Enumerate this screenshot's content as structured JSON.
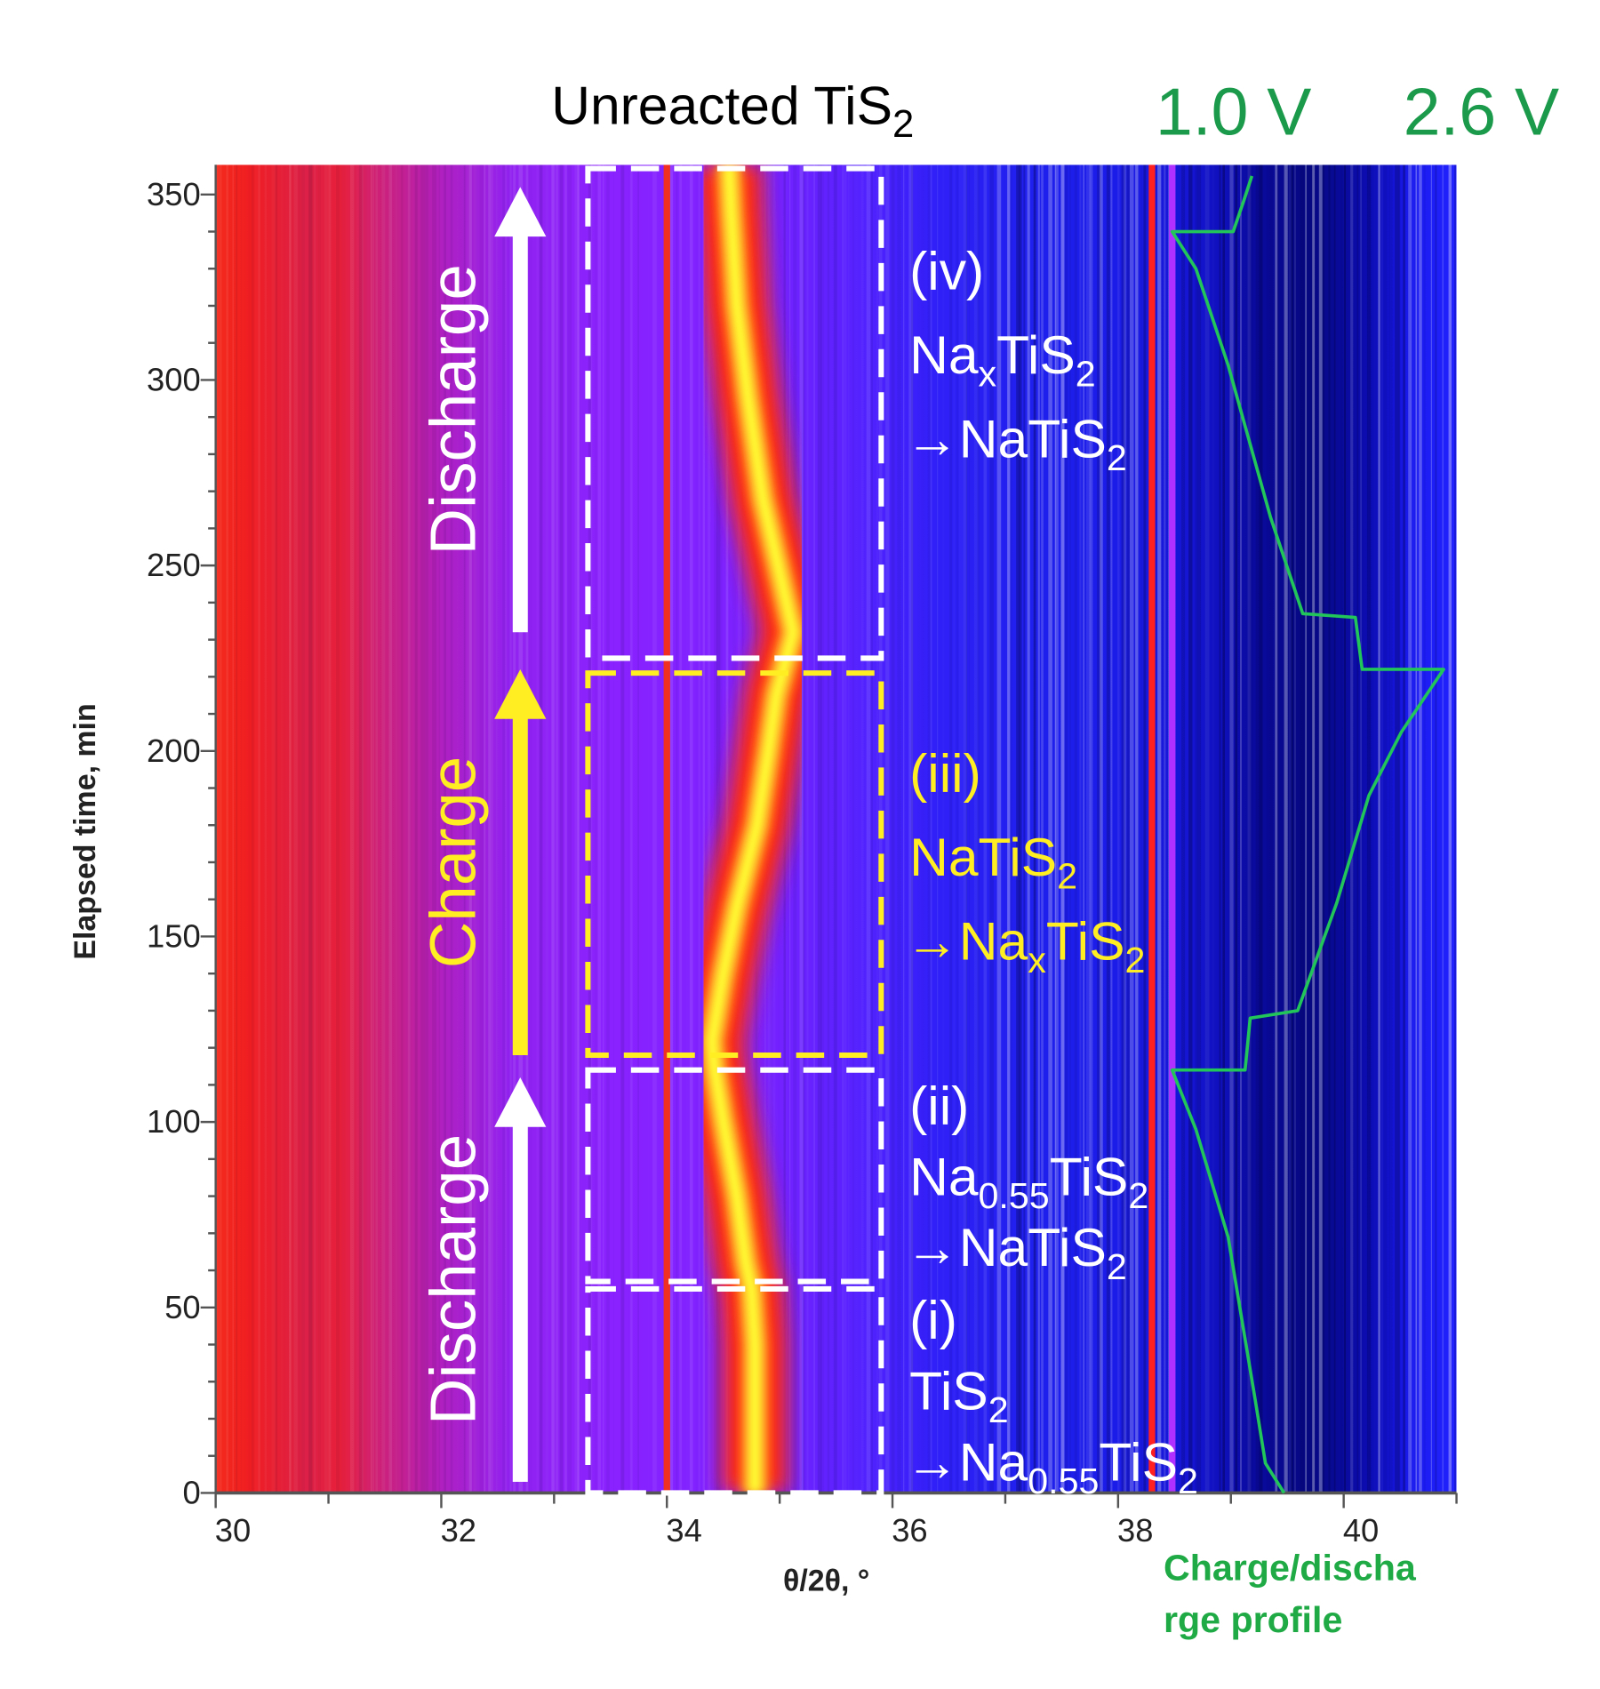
{
  "chart_data": {
    "type": "heatmap",
    "title": [
      "Unreacted TiS",
      {
        "sub": "2"
      }
    ],
    "xlabel": "θ/2θ, °",
    "ylabel": "Elapsed time, min",
    "xlim": [
      30,
      41
    ],
    "ylim": [
      0,
      358
    ],
    "xticks": [
      30,
      32,
      34,
      36,
      38,
      40
    ],
    "yticks": [
      0,
      50,
      100,
      150,
      200,
      250,
      300,
      350
    ],
    "colormap": {
      "low": "#1010e0",
      "mid": "#8a20ff",
      "high_red": "#f02020",
      "peak": "#ffff40"
    },
    "peak_traces": [
      {
        "description_label": "",
        "color": "#ffff30",
        "points": [
          [
            34.0,
            0
          ],
          [
            34.0,
            55
          ]
        ]
      },
      {
        "color": "#ffff30",
        "points": [
          [
            34.78,
            0
          ],
          [
            34.78,
            40
          ],
          [
            34.75,
            55
          ],
          [
            34.7,
            62
          ],
          [
            34.62,
            80
          ],
          [
            34.5,
            100
          ],
          [
            34.42,
            115
          ],
          [
            34.4,
            122
          ],
          [
            34.5,
            140
          ],
          [
            34.62,
            158
          ],
          [
            34.8,
            180
          ],
          [
            34.9,
            200
          ],
          [
            34.97,
            215
          ],
          [
            35.12,
            232
          ],
          [
            35.0,
            248
          ],
          [
            34.85,
            268
          ],
          [
            34.72,
            295
          ],
          [
            34.62,
            320
          ],
          [
            34.57,
            345
          ],
          [
            34.55,
            358
          ]
        ]
      }
    ],
    "constant_lines": [
      {
        "x": 34.0,
        "color": "#f03020"
      },
      {
        "x": 38.3,
        "color": "#ff2020"
      },
      {
        "x": 38.48,
        "color": "#b030ff"
      }
    ],
    "voltage_profile": {
      "name": "Charge/discharge profile",
      "color": "#22c55a",
      "vlim": [
        1.0,
        2.6
      ],
      "vlim_labels": [
        "1.0 V",
        "2.6 V"
      ],
      "points": [
        [
          1.66,
          0
        ],
        [
          1.55,
          8
        ],
        [
          1.49,
          25
        ],
        [
          1.33,
          69
        ],
        [
          1.14,
          98
        ],
        [
          1.0,
          114
        ],
        [
          1.43,
          114
        ],
        [
          1.46,
          128
        ],
        [
          1.74,
          130
        ],
        [
          1.97,
          159
        ],
        [
          2.16,
          188
        ],
        [
          2.35,
          205
        ],
        [
          2.6,
          222
        ],
        [
          2.12,
          222
        ],
        [
          2.08,
          236
        ],
        [
          1.77,
          237
        ],
        [
          1.58,
          263
        ],
        [
          1.33,
          304
        ],
        [
          1.14,
          330
        ],
        [
          1.0,
          340
        ],
        [
          1.36,
          340
        ],
        [
          1.42,
          348
        ],
        [
          1.47,
          355
        ]
      ]
    },
    "regions": [
      {
        "id": "i",
        "x": [
          33.3,
          35.9
        ],
        "t": [
          0,
          55
        ],
        "color": "#ffffff",
        "label": [
          [
            {
              "t": "(i)"
            }
          ],
          [
            {
              "t": "TiS"
            },
            {
              "sub": "2"
            }
          ],
          [
            {
              "t": "→Na"
            },
            {
              "sub": "0.55"
            },
            {
              "t": "TiS"
            },
            {
              "sub": "2"
            }
          ]
        ]
      },
      {
        "id": "ii",
        "x": [
          33.3,
          35.9
        ],
        "t": [
          57,
          114
        ],
        "color": "#ffffff",
        "label": [
          [
            {
              "t": "(ii)"
            }
          ],
          [
            {
              "t": "Na"
            },
            {
              "sub": "0.55"
            },
            {
              "t": "TiS"
            },
            {
              "sub": "2"
            }
          ],
          [
            {
              "t": "→NaTiS"
            },
            {
              "sub": "2"
            }
          ]
        ]
      },
      {
        "id": "iii",
        "x": [
          33.3,
          35.9
        ],
        "t": [
          118,
          221
        ],
        "color": "#ffee22",
        "label": [
          [
            {
              "t": "(iii)"
            }
          ],
          [
            {
              "t": "NaTiS"
            },
            {
              "sub": "2"
            }
          ],
          [
            {
              "t": "→Na"
            },
            {
              "sub": "x"
            },
            {
              "t": "TiS"
            },
            {
              "sub": "2"
            }
          ]
        ]
      },
      {
        "id": "iv",
        "x": [
          33.3,
          35.9
        ],
        "t": [
          225,
          357
        ],
        "color": "#ffffff",
        "label": [
          [
            {
              "t": "(iv)"
            }
          ],
          [
            {
              "t": "Na"
            },
            {
              "sub": "x"
            },
            {
              "t": "TiS"
            },
            {
              "sub": "2"
            }
          ],
          [
            {
              "t": "→NaTiS"
            },
            {
              "sub": "2"
            }
          ]
        ]
      }
    ],
    "arrows": [
      {
        "label": "Discharge",
        "t": [
          3,
          352
        ],
        "color": "#ffffff",
        "split": [
          0,
          110
        ]
      },
      {
        "label": "Charge",
        "t": [
          118,
          222
        ],
        "color": "#ffee22"
      },
      {
        "label": "Discharge",
        "t": [
          232,
          352
        ],
        "color": "#ffffff"
      }
    ],
    "arrow_segments": [
      {
        "label": "Discharge",
        "t": [
          3,
          112
        ],
        "color": "#ffffff"
      },
      {
        "label": "Charge",
        "t": [
          118,
          222
        ],
        "color": "#ffee22"
      },
      {
        "label": "Discharge",
        "t": [
          232,
          352
        ],
        "color": "#ffffff"
      }
    ],
    "profile_label": [
      "Charge/discha",
      "rge profile"
    ]
  }
}
